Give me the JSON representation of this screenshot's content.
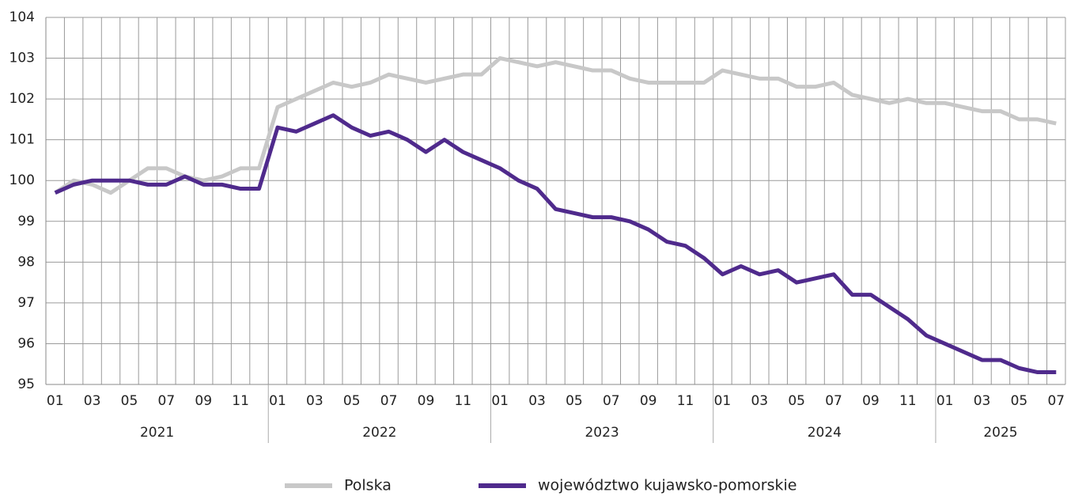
{
  "chart_data": {
    "type": "line",
    "categories": [
      "01",
      null,
      "03",
      null,
      "05",
      null,
      "07",
      null,
      "09",
      null,
      "11",
      null,
      "01",
      null,
      "03",
      null,
      "05",
      null,
      "07",
      null,
      "09",
      null,
      "11",
      null,
      "01",
      null,
      "03",
      null,
      "05",
      null,
      "07",
      null,
      "09",
      null,
      "11",
      null,
      "01",
      null,
      "03",
      null,
      "05",
      null,
      "07",
      null,
      "09",
      null,
      "11",
      null,
      "01",
      null,
      "03",
      null,
      "05",
      null,
      "07"
    ],
    "years": [
      "2021",
      "2022",
      "2023",
      "2024",
      "2025"
    ],
    "series": [
      {
        "name": "Polska",
        "color": "#c8c8c8",
        "values": [
          99.7,
          100.0,
          99.9,
          99.7,
          100.0,
          100.3,
          100.3,
          100.1,
          100.0,
          100.1,
          100.3,
          100.3,
          101.8,
          102.0,
          102.2,
          102.4,
          102.3,
          102.4,
          102.6,
          102.5,
          102.4,
          102.5,
          102.6,
          102.6,
          103.0,
          102.9,
          102.8,
          102.9,
          102.8,
          102.7,
          102.7,
          102.5,
          102.4,
          102.4,
          102.4,
          102.4,
          102.7,
          102.6,
          102.5,
          102.5,
          102.3,
          102.3,
          102.4,
          102.1,
          102.0,
          101.9,
          102.0,
          101.9,
          101.9,
          101.8,
          101.7,
          101.7,
          101.5,
          101.5,
          101.4
        ]
      },
      {
        "name": "województwo kujawsko-pomorskie",
        "color": "#4f2a8c",
        "values": [
          99.7,
          99.9,
          100.0,
          100.0,
          100.0,
          99.9,
          99.9,
          100.1,
          99.9,
          99.9,
          99.8,
          99.8,
          101.3,
          101.2,
          101.4,
          101.6,
          101.3,
          101.1,
          101.2,
          101.0,
          100.7,
          101.0,
          100.7,
          100.5,
          100.3,
          100.0,
          99.8,
          99.3,
          99.2,
          99.1,
          99.1,
          99.0,
          98.8,
          98.5,
          98.4,
          98.1,
          97.7,
          97.9,
          97.7,
          97.8,
          97.5,
          97.6,
          97.7,
          97.2,
          97.2,
          96.9,
          96.6,
          96.2,
          96.0,
          95.8,
          95.6,
          95.6,
          95.4,
          95.3,
          95.3
        ]
      }
    ],
    "ylim": [
      95,
      104
    ],
    "yticks": [
      95,
      96,
      97,
      98,
      99,
      100,
      101,
      102,
      103,
      104
    ],
    "grid": true,
    "legend": "bottom"
  }
}
